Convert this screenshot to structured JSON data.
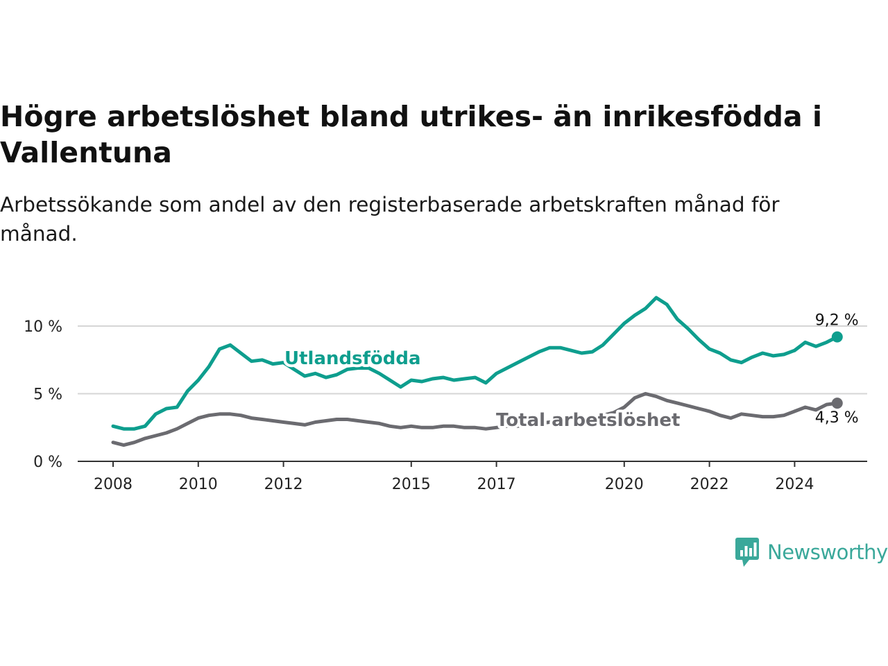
{
  "header": {
    "title": "Högre arbetslöshet bland utrikes- än inrikesfödda i Vallentuna",
    "subtitle": "Arbetssökande som andel av den registerbaserade arbetskraften månad för månad."
  },
  "brand": {
    "name": "Newsworthy",
    "color": "#3aa89a"
  },
  "chart_data": {
    "type": "line",
    "title": "Högre arbetslöshet bland utrikes- än inrikesfödda i Vallentuna",
    "subtitle": "Arbetssökande som andel av den registerbaserade arbetskraften månad för månad.",
    "xlabel": "",
    "ylabel": "",
    "x_ticks": [
      2008,
      2010,
      2012,
      2015,
      2017,
      2020,
      2022,
      2024
    ],
    "y_ticks": [
      0,
      5,
      10
    ],
    "y_tick_labels": [
      "0 %",
      "5 %",
      "10 %"
    ],
    "xlim": [
      2007.2,
      2025.8
    ],
    "ylim": [
      0,
      13.5
    ],
    "grid": "horizontal",
    "series": [
      {
        "name": "Utlandsfödda",
        "color": "#0e9e8e",
        "end_label": "9,2 %",
        "points": [
          [
            2008.0,
            2.6
          ],
          [
            2008.25,
            2.4
          ],
          [
            2008.5,
            2.4
          ],
          [
            2008.75,
            2.6
          ],
          [
            2009.0,
            3.5
          ],
          [
            2009.25,
            3.9
          ],
          [
            2009.5,
            4.0
          ],
          [
            2009.75,
            5.2
          ],
          [
            2010.0,
            6.0
          ],
          [
            2010.25,
            7.0
          ],
          [
            2010.5,
            8.3
          ],
          [
            2010.75,
            8.6
          ],
          [
            2011.0,
            8.0
          ],
          [
            2011.25,
            7.4
          ],
          [
            2011.5,
            7.5
          ],
          [
            2011.75,
            7.2
          ],
          [
            2012.0,
            7.3
          ],
          [
            2012.25,
            6.8
          ],
          [
            2012.5,
            6.3
          ],
          [
            2012.75,
            6.5
          ],
          [
            2013.0,
            6.2
          ],
          [
            2013.25,
            6.4
          ],
          [
            2013.5,
            6.8
          ],
          [
            2013.75,
            6.9
          ],
          [
            2014.0,
            6.9
          ],
          [
            2014.25,
            6.5
          ],
          [
            2014.5,
            6.0
          ],
          [
            2014.75,
            5.5
          ],
          [
            2015.0,
            6.0
          ],
          [
            2015.25,
            5.9
          ],
          [
            2015.5,
            6.1
          ],
          [
            2015.75,
            6.2
          ],
          [
            2016.0,
            6.0
          ],
          [
            2016.25,
            6.1
          ],
          [
            2016.5,
            6.2
          ],
          [
            2016.75,
            5.8
          ],
          [
            2017.0,
            6.5
          ],
          [
            2017.25,
            6.9
          ],
          [
            2017.5,
            7.3
          ],
          [
            2017.75,
            7.7
          ],
          [
            2018.0,
            8.1
          ],
          [
            2018.25,
            8.4
          ],
          [
            2018.5,
            8.4
          ],
          [
            2018.75,
            8.2
          ],
          [
            2019.0,
            8.0
          ],
          [
            2019.25,
            8.1
          ],
          [
            2019.5,
            8.6
          ],
          [
            2019.75,
            9.4
          ],
          [
            2020.0,
            10.2
          ],
          [
            2020.25,
            10.8
          ],
          [
            2020.5,
            11.3
          ],
          [
            2020.75,
            12.1
          ],
          [
            2021.0,
            11.6
          ],
          [
            2021.25,
            10.5
          ],
          [
            2021.5,
            9.8
          ],
          [
            2021.75,
            9.0
          ],
          [
            2022.0,
            8.3
          ],
          [
            2022.25,
            8.0
          ],
          [
            2022.5,
            7.5
          ],
          [
            2022.75,
            7.3
          ],
          [
            2023.0,
            7.7
          ],
          [
            2023.25,
            8.0
          ],
          [
            2023.5,
            7.8
          ],
          [
            2023.75,
            7.9
          ],
          [
            2024.0,
            8.2
          ],
          [
            2024.25,
            8.8
          ],
          [
            2024.5,
            8.5
          ],
          [
            2024.75,
            8.8
          ],
          [
            2025.0,
            9.2
          ]
        ]
      },
      {
        "name": "Total arbetslöshet",
        "color": "#6b6b70",
        "end_label": "4,3 %",
        "points": [
          [
            2008.0,
            1.4
          ],
          [
            2008.25,
            1.2
          ],
          [
            2008.5,
            1.4
          ],
          [
            2008.75,
            1.7
          ],
          [
            2009.0,
            1.9
          ],
          [
            2009.25,
            2.1
          ],
          [
            2009.5,
            2.4
          ],
          [
            2009.75,
            2.8
          ],
          [
            2010.0,
            3.2
          ],
          [
            2010.25,
            3.4
          ],
          [
            2010.5,
            3.5
          ],
          [
            2010.75,
            3.5
          ],
          [
            2011.0,
            3.4
          ],
          [
            2011.25,
            3.2
          ],
          [
            2011.5,
            3.1
          ],
          [
            2011.75,
            3.0
          ],
          [
            2012.0,
            2.9
          ],
          [
            2012.25,
            2.8
          ],
          [
            2012.5,
            2.7
          ],
          [
            2012.75,
            2.9
          ],
          [
            2013.0,
            3.0
          ],
          [
            2013.25,
            3.1
          ],
          [
            2013.5,
            3.1
          ],
          [
            2013.75,
            3.0
          ],
          [
            2014.0,
            2.9
          ],
          [
            2014.25,
            2.8
          ],
          [
            2014.5,
            2.6
          ],
          [
            2014.75,
            2.5
          ],
          [
            2015.0,
            2.6
          ],
          [
            2015.25,
            2.5
          ],
          [
            2015.5,
            2.5
          ],
          [
            2015.75,
            2.6
          ],
          [
            2016.0,
            2.6
          ],
          [
            2016.25,
            2.5
          ],
          [
            2016.5,
            2.5
          ],
          [
            2016.75,
            2.4
          ],
          [
            2017.0,
            2.5
          ],
          [
            2017.25,
            2.6
          ],
          [
            2017.5,
            2.6
          ],
          [
            2017.75,
            2.7
          ],
          [
            2018.0,
            2.8
          ],
          [
            2018.25,
            2.9
          ],
          [
            2018.5,
            3.0
          ],
          [
            2018.75,
            3.1
          ],
          [
            2019.0,
            3.2
          ],
          [
            2019.25,
            3.3
          ],
          [
            2019.5,
            3.4
          ],
          [
            2019.75,
            3.6
          ],
          [
            2020.0,
            4.0
          ],
          [
            2020.25,
            4.7
          ],
          [
            2020.5,
            5.0
          ],
          [
            2020.75,
            4.8
          ],
          [
            2021.0,
            4.5
          ],
          [
            2021.25,
            4.3
          ],
          [
            2021.5,
            4.1
          ],
          [
            2021.75,
            3.9
          ],
          [
            2022.0,
            3.7
          ],
          [
            2022.25,
            3.4
          ],
          [
            2022.5,
            3.2
          ],
          [
            2022.75,
            3.5
          ],
          [
            2023.0,
            3.4
          ],
          [
            2023.25,
            3.3
          ],
          [
            2023.5,
            3.3
          ],
          [
            2023.75,
            3.4
          ],
          [
            2024.0,
            3.7
          ],
          [
            2024.25,
            4.0
          ],
          [
            2024.5,
            3.8
          ],
          [
            2024.75,
            4.2
          ],
          [
            2025.0,
            4.3
          ]
        ]
      }
    ]
  }
}
